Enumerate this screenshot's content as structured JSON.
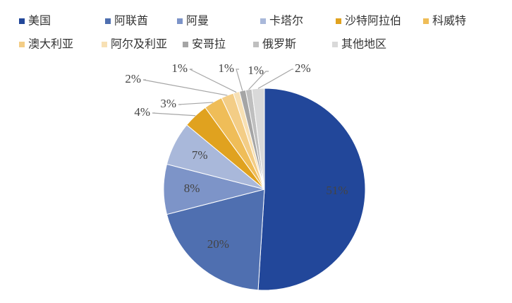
{
  "chart_data": {
    "type": "pie",
    "categories": [
      "美国",
      "阿联酋",
      "阿曼",
      "卡塔尔",
      "沙特阿拉伯",
      "科威特",
      "澳大利亚",
      "阿尔及利亚",
      "安哥拉",
      "俄罗斯",
      "其他地区"
    ],
    "values": [
      51,
      20,
      8,
      7,
      4,
      3,
      2,
      1,
      1,
      1,
      2
    ],
    "value_labels": [
      "51%",
      "20%",
      "8%",
      "7%",
      "4%",
      "3%",
      "2%",
      "1%",
      "1%",
      "1%",
      "2%"
    ],
    "colors": [
      "#22479a",
      "#4f6fb0",
      "#7d94c8",
      "#a9b8da",
      "#e0a21f",
      "#efbd58",
      "#f3cd86",
      "#f7e0b4",
      "#a5a5a5",
      "#bfbfbf",
      "#d9d9d9"
    ]
  }
}
